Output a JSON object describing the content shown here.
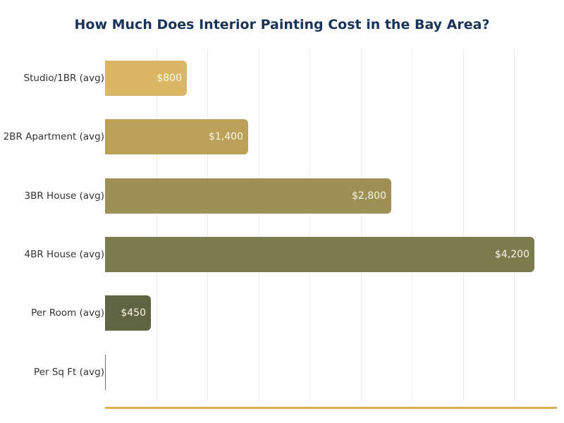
{
  "title": "How Much Does Interior Painting Cost in the Bay Area?",
  "colors": {
    "title": "#1a3358",
    "baseline": "#d8b055",
    "bars": [
      "#dbb665",
      "#bba05a",
      "#9e8f55",
      "#7c7b50",
      "#5f6543",
      "#6e6e6e"
    ]
  },
  "chart_data": {
    "type": "bar",
    "orientation": "horizontal",
    "title": "How Much Does Interior Painting Cost in the Bay Area?",
    "xlabel": "",
    "ylabel": "",
    "categories": [
      "Studio/1BR (avg)",
      "2BR Apartment (avg)",
      "3BR House (avg)",
      "4BR House (avg)",
      "Per Room (avg)",
      "Per Sq Ft (avg)"
    ],
    "values": [
      800,
      1400,
      2800,
      4200,
      450,
      4
    ],
    "value_labels": [
      "$800",
      "$1,400",
      "$2,800",
      "$4,200",
      "$450",
      ""
    ],
    "xlim": [
      0,
      4420
    ],
    "grid": {
      "x": true,
      "y": false,
      "x_interval": 500
    },
    "legend": null
  },
  "rows": [
    {
      "label": "Studio/1BR (avg)",
      "value_text": "$800"
    },
    {
      "label": "2BR Apartment (avg)",
      "value_text": "$1,400"
    },
    {
      "label": "3BR House (avg)",
      "value_text": "$2,800"
    },
    {
      "label": "4BR House (avg)",
      "value_text": "$4,200"
    },
    {
      "label": "Per Room (avg)",
      "value_text": "$450"
    },
    {
      "label": "Per Sq Ft (avg)",
      "value_text": ""
    }
  ]
}
